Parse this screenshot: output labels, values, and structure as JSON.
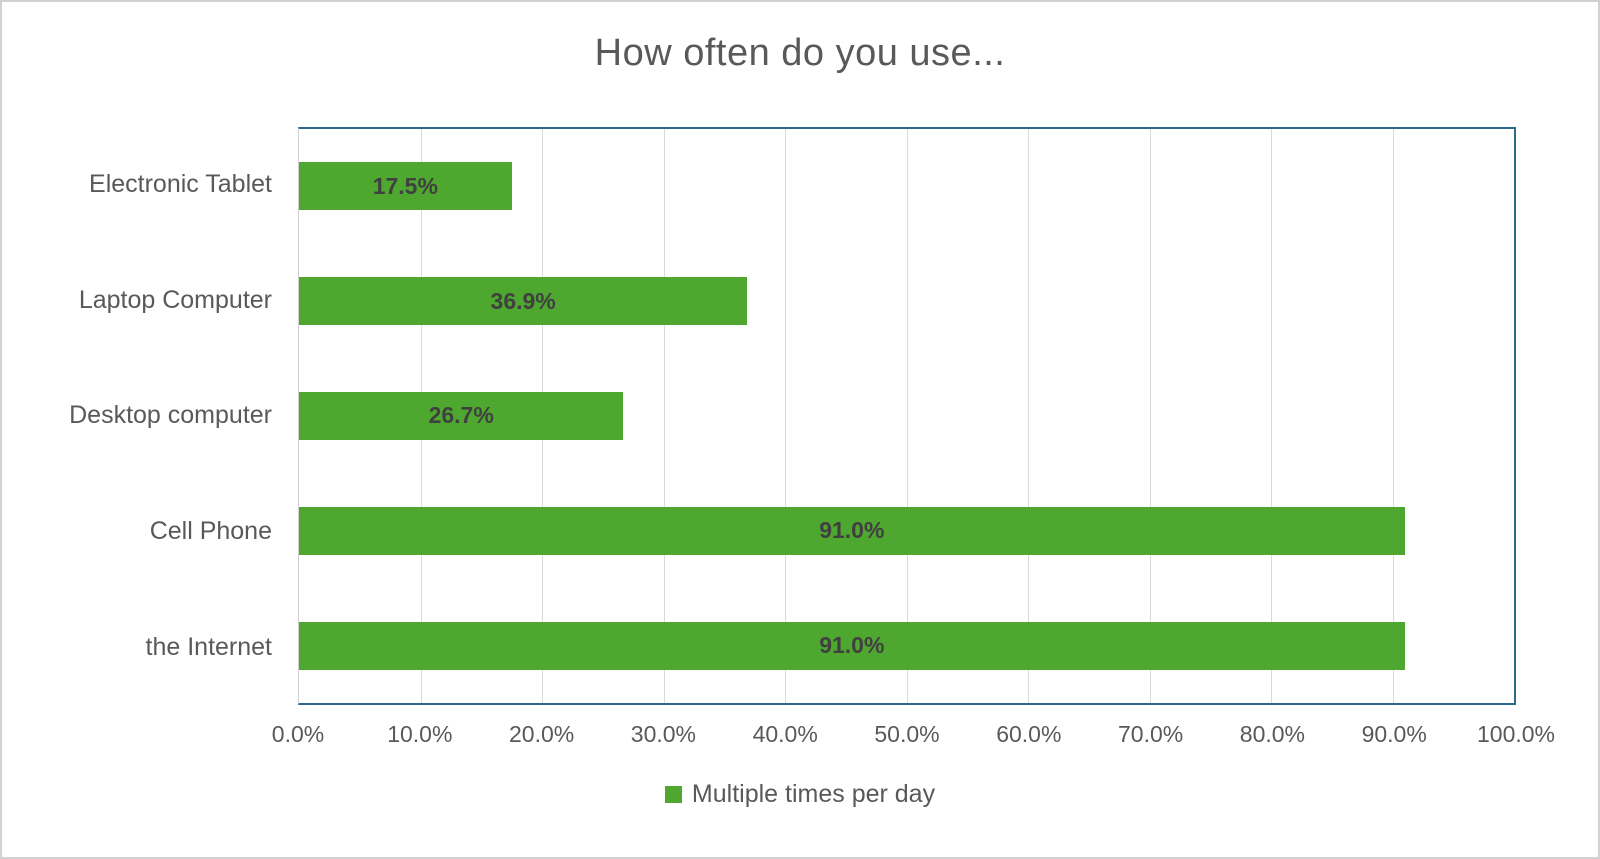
{
  "chart_data": {
    "type": "bar",
    "orientation": "horizontal",
    "title": "How often do you use...",
    "categories": [
      "Electronic Tablet",
      "Laptop Computer",
      "Desktop computer",
      "Cell Phone",
      "the Internet"
    ],
    "series": [
      {
        "name": "Multiple times per day",
        "values": [
          17.5,
          36.9,
          26.7,
          91.0,
          91.0
        ]
      }
    ],
    "value_labels": [
      "17.5%",
      "36.9%",
      "26.7%",
      "91.0%",
      "91.0%"
    ],
    "x_tick_labels": [
      "0.0%",
      "10.0%",
      "20.0%",
      "30.0%",
      "40.0%",
      "50.0%",
      "60.0%",
      "70.0%",
      "80.0%",
      "90.0%",
      "100.0%"
    ],
    "xlim": [
      0,
      100
    ],
    "grid": "vertical-gridlines-on",
    "legend_position": "bottom",
    "value_label_position": "inside-center",
    "colors": {
      "bar": "#4ea72e",
      "plot_border": "#2a6b8a",
      "gridline": "#d9d9d9",
      "axis_text": "#595959",
      "title_text": "#595959",
      "value_label_text": "#404040"
    }
  },
  "legend": {
    "items": [
      {
        "label": "Multiple times per day",
        "swatch_color": "#4ea72e"
      }
    ]
  }
}
